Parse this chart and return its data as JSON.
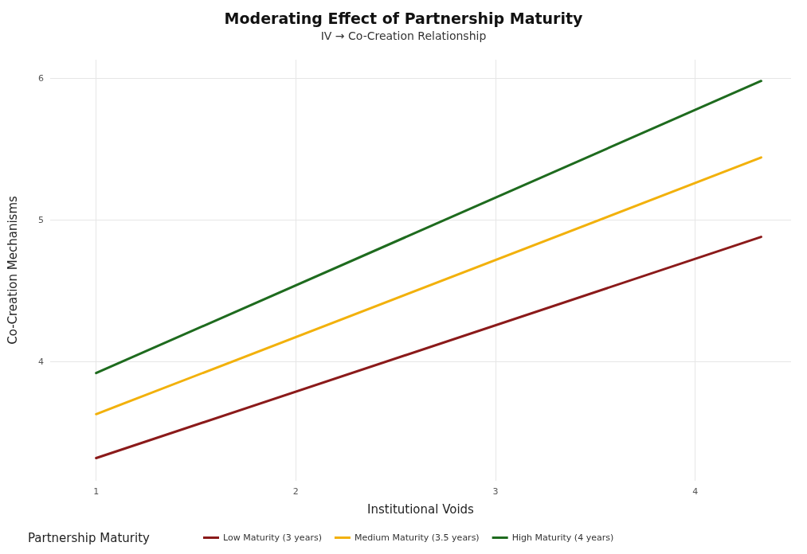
{
  "chart_data": {
    "type": "line",
    "title": "Moderating Effect of Partnership Maturity",
    "subtitle": "IV → Co-Creation Relationship",
    "xlabel": "Institutional Voids",
    "ylabel": "Co-Creation Mechanisms",
    "legend_title": "Partnership Maturity",
    "x": [
      1,
      4.33
    ],
    "series": [
      {
        "name": "Low Maturity (3 years)",
        "color": "#8b1a1a",
        "values": [
          3.32,
          4.88
        ]
      },
      {
        "name": "Medium Maturity (3.5 years)",
        "color": "#f2b10c",
        "values": [
          3.63,
          5.44
        ]
      },
      {
        "name": "High Maturity (4 years)",
        "color": "#1e6b1e",
        "values": [
          3.92,
          5.98
        ]
      }
    ],
    "xlim": [
      0.77,
      4.48
    ],
    "xticks": [
      1,
      2,
      3,
      4
    ],
    "ylim": [
      3.16,
      6.13
    ],
    "yticks": [
      4,
      5,
      6
    ],
    "grid": true,
    "legend": "bottom",
    "marker": "none",
    "line_style": "solid"
  }
}
